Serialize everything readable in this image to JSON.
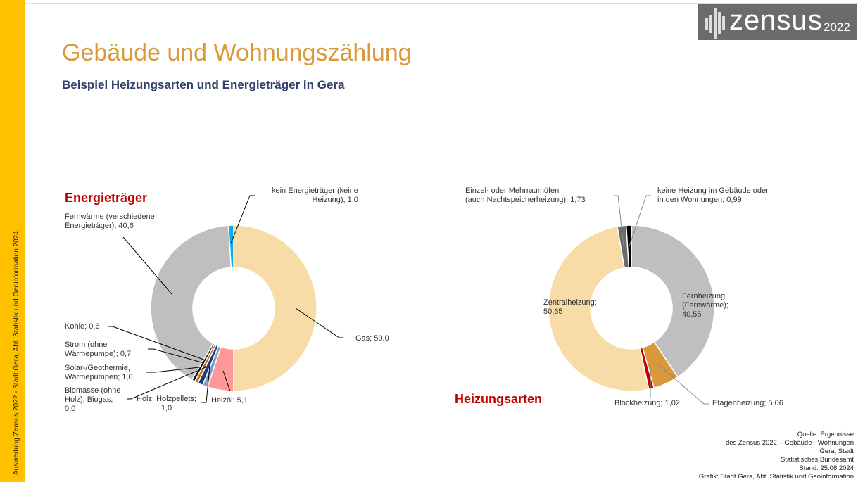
{
  "sidebar_text": "Auswertung  Zensus 2022 - Stadt Gera, Abt. Statistik und Geoinformation 2024",
  "logo": {
    "word": "zensus",
    "year": "2022"
  },
  "title": "Gebäude und Wohnungszählung",
  "subtitle": "Beispiel Heizungsarten und Energieträger in Gera",
  "chart_data": [
    {
      "type": "pie",
      "title": "Energieträger",
      "donut": true,
      "slices": [
        {
          "label": "Gas; 50,0",
          "name": "Gas",
          "value": 50.0,
          "color": "#f7dca8"
        },
        {
          "label": "Heizöl; 5,1",
          "name": "Heizöl",
          "value": 5.1,
          "color": "#ff9999"
        },
        {
          "label": "Holz, Holzpellets; 1,0",
          "name": "Holz, Holzpellets",
          "value": 1.0,
          "color": "#7f9bd0"
        },
        {
          "label": "Solar-/Geothermie, Wärmepumpen; 1,0",
          "name": "Solar-/Geothermie, Wärmepumpen",
          "value": 1.0,
          "color": "#1f3c78"
        },
        {
          "label": "Strom (ohne Wärmepumpe); 0,7",
          "name": "Strom (ohne Wärmepumpe)",
          "value": 0.7,
          "color": "#c8701e"
        },
        {
          "label": "Kohle; 0,6",
          "name": "Kohle",
          "value": 0.6,
          "color": "#000000"
        },
        {
          "label": "Biomasse (ohne Holz), Biogas; 0,0",
          "name": "Biomasse (ohne Holz), Biogas",
          "value": 0.0,
          "color": "#4a7a2a"
        },
        {
          "label": "Fernwärme (verschiedene Energieträger); 40,6",
          "name": "Fernwärme (verschiedene Energieträger)",
          "value": 40.6,
          "color": "#bfbfbf"
        },
        {
          "label": "kein Energieträger (keine Heizung); 1,0",
          "name": "kein Energieträger (keine Heizung)",
          "value": 1.0,
          "color": "#00b0f0"
        }
      ]
    },
    {
      "type": "pie",
      "title": "Heizungsarten",
      "donut": true,
      "slices": [
        {
          "label": "Fernheizung (Fernwärme); 40,55",
          "name": "Fernheizung (Fernwärme)",
          "value": 40.55,
          "color": "#bfbfbf"
        },
        {
          "label": "Etagenheizung; 5,06",
          "name": "Etagenheizung",
          "value": 5.06,
          "color": "#d9993a"
        },
        {
          "label": "Blockheizung; 1,02",
          "name": "Blockheizung",
          "value": 1.02,
          "color": "#c00000"
        },
        {
          "label": "Zentralheizung; 50,65",
          "name": "Zentralheizung",
          "value": 50.65,
          "color": "#f7dca8"
        },
        {
          "label": "Einzel- oder Mehrraumöfen (auch Nachtspeicherheizung); 1,73",
          "name": "Einzel- oder Mehrraumöfen (auch Nachtspeicherheizung)",
          "value": 1.73,
          "color": "#6b6b6b"
        },
        {
          "label": "keine Heizung im Gebäude oder in den Wohnungen; 0,99",
          "name": "keine Heizung im Gebäude oder in den Wohnungen",
          "value": 0.99,
          "color": "#000000"
        }
      ]
    }
  ],
  "labels": {
    "left": {
      "kein": [
        "kein Energieträger (keine",
        "Heizung); 1,0"
      ],
      "fern": [
        "Fernwärme (verschiedene",
        "Energieträger); 40,6"
      ],
      "kohle": [
        "Kohle; 0,6"
      ],
      "strom": [
        "Strom (ohne",
        "Wärmepumpe); 0,7"
      ],
      "solar": [
        "Solar-/Geothermie,",
        "Wärmepumpen; 1,0"
      ],
      "bio": [
        "Biomasse (ohne",
        "Holz), Biogas;",
        "0,0"
      ],
      "holz": [
        "Holz, Holzpellets;",
        "1,0"
      ],
      "heizoel": [
        "Heizöl; 5,1"
      ],
      "gas": [
        "Gas; 50,0"
      ]
    },
    "right": {
      "einzel": [
        "Einzel- oder Mehrraumöfen",
        "(auch Nachtspeicherheizung); 1,73"
      ],
      "keine": [
        "keine Heizung im Gebäude oder",
        "in den Wohnungen; 0,99"
      ],
      "zentral": [
        "Zentralheizung;",
        "50,65"
      ],
      "fern": [
        "Fernheizung",
        "(Fernwärme);",
        "40,55"
      ],
      "block": [
        "Blockheizung; 1,02"
      ],
      "etage": [
        "Etagenheizung; 5,06"
      ]
    }
  },
  "source": [
    "Quelle: Ergebnisse",
    "des Zensus 2022 – Gebäude - Wohnungen",
    "Gera, Stadt",
    "Statistisches Bundesamt",
    "Stand: 25.06.2024",
    "Grafik: Stadt Gera, Abt. Statistik und Geoinformation"
  ]
}
